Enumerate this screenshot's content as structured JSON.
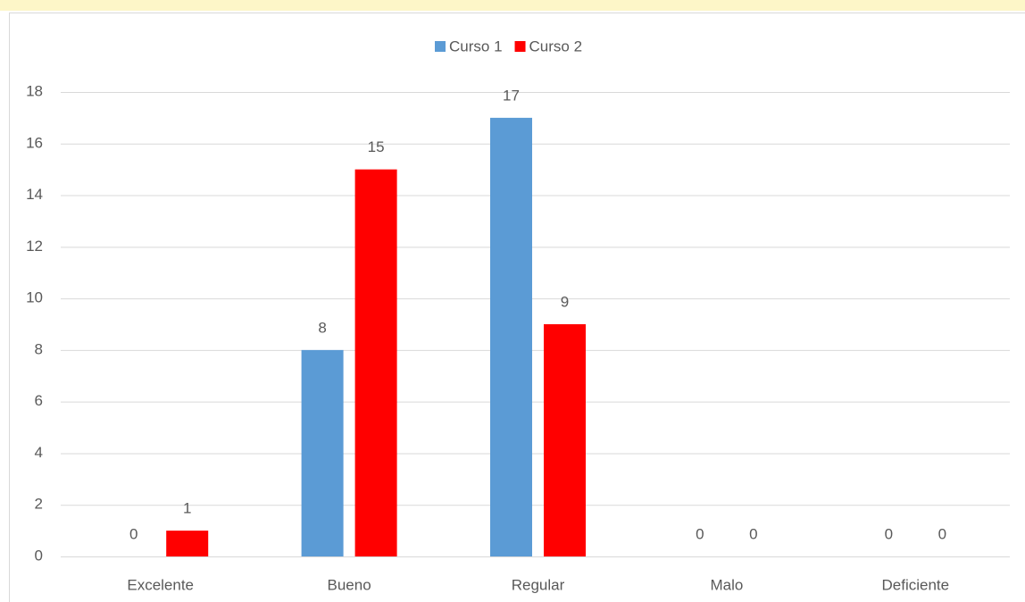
{
  "chart_data": {
    "type": "bar",
    "categories": [
      "Excelente",
      "Bueno",
      "Regular",
      "Malo",
      "Deficiente"
    ],
    "series": [
      {
        "name": "Curso 1",
        "color": "#5b9bd5",
        "values": [
          0,
          8,
          17,
          0,
          0
        ]
      },
      {
        "name": "Curso 2",
        "color": "#ff0000",
        "values": [
          1,
          15,
          9,
          0,
          0
        ]
      }
    ],
    "ylim": [
      0,
      18
    ],
    "yticks": [
      0,
      2,
      4,
      6,
      8,
      10,
      12,
      14,
      16,
      18
    ],
    "grid": true,
    "legend": "top"
  }
}
